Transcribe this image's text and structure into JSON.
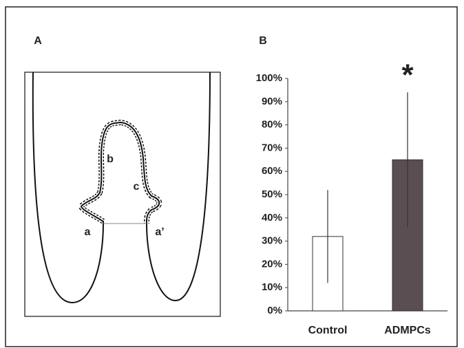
{
  "panels": [
    "A",
    "B"
  ],
  "diagram": {
    "labels": [
      "a",
      "b",
      "c",
      "a’"
    ]
  },
  "chart_data": {
    "type": "bar",
    "categories": [
      "Control",
      "ADMPCs"
    ],
    "values": [
      32,
      65
    ],
    "errors": [
      20,
      29
    ],
    "colors": [
      "#ffffff",
      "#5a4e52"
    ],
    "ylim": [
      0,
      100
    ],
    "yticks": [
      {
        "value": 0,
        "label": "0%"
      },
      {
        "value": 10,
        "label": "10%"
      },
      {
        "value": 20,
        "label": "20%"
      },
      {
        "value": 30,
        "label": "30%"
      },
      {
        "value": 40,
        "label": "40%"
      },
      {
        "value": 50,
        "label": "50%"
      },
      {
        "value": 60,
        "label": "60%"
      },
      {
        "value": 70,
        "label": "70%"
      },
      {
        "value": 80,
        "label": "80%"
      },
      {
        "value": 90,
        "label": "90%"
      },
      {
        "value": 100,
        "label": "100%"
      }
    ],
    "annotations": [
      {
        "text": "*",
        "x": "ADMPCs"
      }
    ],
    "grid": false
  }
}
